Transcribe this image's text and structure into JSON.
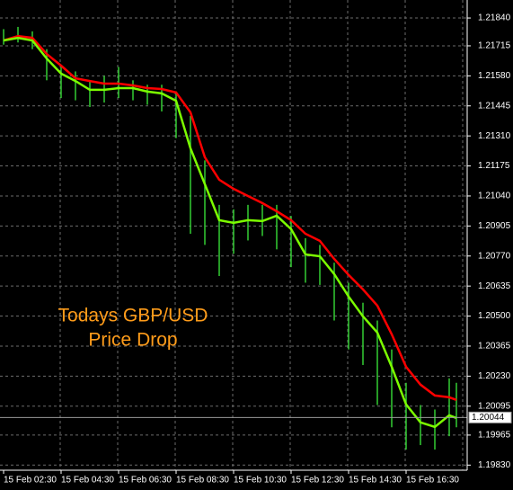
{
  "chart_data": {
    "type": "ohlc",
    "x": [
      2.5,
      3.0,
      3.5,
      4.0,
      4.5,
      5.0,
      5.5,
      6.0,
      6.5,
      7.0,
      7.5,
      8.0,
      8.5,
      9.0,
      9.5,
      10.0,
      10.5,
      11.0,
      11.5,
      12.0,
      12.5,
      13.0,
      13.5,
      14.0,
      14.5,
      15.0,
      15.5,
      16.0,
      16.5,
      17.0,
      17.5,
      18.0,
      18.25
    ],
    "high": [
      1.2179,
      1.218,
      1.2178,
      1.217,
      1.2162,
      1.216,
      1.2156,
      1.2158,
      1.2162,
      1.2156,
      1.2154,
      1.2154,
      1.2151,
      1.214,
      1.212,
      1.21,
      1.2098,
      1.21,
      1.21,
      1.21,
      1.2095,
      1.2085,
      1.2082,
      1.2074,
      1.2065,
      1.2056,
      1.2048,
      1.2035,
      1.202,
      1.201,
      1.2008,
      1.2022,
      1.202
    ],
    "low": [
      1.2172,
      1.2173,
      1.217,
      1.2156,
      1.2148,
      1.2147,
      1.2144,
      1.2146,
      1.2148,
      1.2147,
      1.2145,
      1.2142,
      1.213,
      1.2087,
      1.2082,
      1.2068,
      1.2078,
      1.2084,
      1.2086,
      1.208,
      1.2072,
      1.2065,
      1.2064,
      1.2048,
      1.2035,
      1.2028,
      1.201,
      1.2,
      1.199,
      1.1992,
      1.199,
      1.1996,
      1.2
    ],
    "bar_color": "#32cd32",
    "series": [
      {
        "color": "#ff0000",
        "values": [
          1.21739,
          1.21759,
          1.21751,
          1.21678,
          1.21626,
          1.21569,
          1.21557,
          1.21545,
          1.21545,
          1.21537,
          1.21525,
          1.21521,
          1.21505,
          1.21416,
          1.21214,
          1.21113,
          1.21072,
          1.2104,
          1.21008,
          1.20971,
          1.20931,
          1.2087,
          1.20838,
          1.20757,
          1.20685,
          1.2062,
          1.20547,
          1.20418,
          1.20272,
          1.20192,
          1.20143,
          1.20135,
          1.20123
        ]
      },
      {
        "color": "#7cfc00",
        "values": [
          1.21739,
          1.21751,
          1.21739,
          1.21658,
          1.2159,
          1.21557,
          1.21517,
          1.21517,
          1.21525,
          1.21525,
          1.21509,
          1.21501,
          1.21468,
          1.21254,
          1.21093,
          1.20931,
          1.20919,
          1.20931,
          1.20927,
          1.20951,
          1.20891,
          1.20777,
          1.20769,
          1.20689,
          1.20588,
          1.20499,
          1.20426,
          1.20272,
          1.20103,
          1.20022,
          1.20002,
          1.20054,
          1.20042
        ]
      }
    ],
    "current_price": 1.20044,
    "annotation": [
      "Todays GBP/USD",
      "Price Drop"
    ],
    "xlim": [
      2.375,
      18.625
    ],
    "ylim": [
      1.19807,
      1.21921
    ],
    "xticks": [
      {
        "value": 2.5,
        "label": "15 Feb 02:30"
      },
      {
        "value": 4.5,
        "label": "15 Feb 04:30"
      },
      {
        "value": 6.5,
        "label": "15 Feb 06:30"
      },
      {
        "value": 8.5,
        "label": "15 Feb 08:30"
      },
      {
        "value": 10.5,
        "label": "15 Feb 10:30"
      },
      {
        "value": 12.5,
        "label": "15 Feb 12:30"
      },
      {
        "value": 14.5,
        "label": "15 Feb 14:30"
      },
      {
        "value": 16.5,
        "label": "15 Feb 16:30"
      }
    ],
    "yticks": [
      {
        "value": 1.2184,
        "label": "1.21840"
      },
      {
        "value": 1.21715,
        "label": "1.21715"
      },
      {
        "value": 1.2158,
        "label": "1.21580"
      },
      {
        "value": 1.21445,
        "label": "1.21445"
      },
      {
        "value": 1.2131,
        "label": "1.21310"
      },
      {
        "value": 1.21175,
        "label": "1.21175"
      },
      {
        "value": 1.2104,
        "label": "1.21040"
      },
      {
        "value": 1.20905,
        "label": "1.20905"
      },
      {
        "value": 1.2077,
        "label": "1.20770"
      },
      {
        "value": 1.20635,
        "label": "1.20635"
      },
      {
        "value": 1.205,
        "label": "1.20500"
      },
      {
        "value": 1.20365,
        "label": "1.20365"
      },
      {
        "value": 1.2023,
        "label": "1.20230"
      },
      {
        "value": 1.20095,
        "label": "1.20095"
      },
      {
        "value": 1.19965,
        "label": "1.19965"
      },
      {
        "value": 1.1983,
        "label": "1.19830"
      }
    ],
    "grid": true
  }
}
